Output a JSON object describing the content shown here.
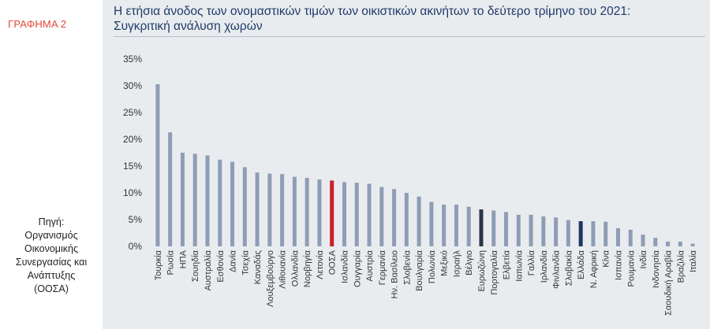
{
  "figure_label": "ΓΡΑΦΗΜΑ 2",
  "title_lines": [
    "Η ετήσια άνοδος των ονομαστικών τιμών των οικιστικών ακινήτων το δεύτερο τρίμηνο του 2021:",
    "Συγκριτική ανάλυση χωρών"
  ],
  "source_lines": [
    "Πηγή:",
    "Οργανισμός",
    "Οικονομικής",
    "Συνεργασίας και",
    "Ανάπτυξης",
    "(ΟΟΣΑ)"
  ],
  "colors": {
    "bar": "#8e9db5",
    "highlight_oecd": "#c8202a",
    "highlight_eurozone": "#2b3547",
    "highlight_greece": "#1f3566",
    "axis_text": "#333333",
    "panel_bg": "#e9ecef",
    "title": "#1f3a6a",
    "figure_label": "#e2473a"
  },
  "chart_data": {
    "type": "bar",
    "title": "Η ετήσια άνοδος των ονομαστικών τιμών των οικιστικών ακινήτων το δεύτερο τρίμηνο του 2021: Συγκριτική ανάλυση χωρών",
    "xlabel": "",
    "ylabel": "",
    "ylim": [
      0,
      35
    ],
    "yticks": [
      0,
      5,
      10,
      15,
      20,
      25,
      30,
      35
    ],
    "ytick_labels": [
      "0%",
      "5%",
      "10%",
      "15%",
      "20%",
      "25%",
      "30%",
      "35%"
    ],
    "grid": false,
    "categories": [
      "Τουρκία",
      "Ρωσία",
      "ΗΠΑ",
      "Σουηδία",
      "Αυστραλία",
      "Εσθονία",
      "Δανία",
      "Τσεχία",
      "Καναδάς",
      "Λουξεμβούργο",
      "Λιθουανία",
      "Ολλανδία",
      "Νορβηγία",
      "Λετονία",
      "ΟΟΣΑ",
      "Ισλανδία",
      "Ουγγαρία",
      "Αυστρία",
      "Γερμανία",
      "Ην. Βασίλειο",
      "Σλοβενία",
      "Βουλγαρία",
      "Πολωνία",
      "Μεξικό",
      "Ισραήλ",
      "Βέλγιο",
      "Ευρωζώνη",
      "Πορτογαλία",
      "Ελβετία",
      "Ιαπωνία",
      "Γαλλία",
      "Ιρλανδία",
      "Φινλανδία",
      "Σλοβακία",
      "Ελλάδα",
      "Ν. Αφρική",
      "Κίνα",
      "Ισπανία",
      "Ρουμανία",
      "Ινδία",
      "Ινδονησία",
      "Σαουδική Αραβία",
      "Βραζιλία",
      "Ιταλία"
    ],
    "values": [
      30.3,
      21.3,
      17.5,
      17.3,
      17.0,
      16.2,
      15.8,
      14.8,
      13.8,
      13.6,
      13.5,
      13.0,
      12.8,
      12.5,
      12.3,
      12.0,
      11.9,
      11.7,
      11.1,
      10.7,
      10.0,
      9.3,
      8.3,
      7.8,
      7.8,
      7.4,
      6.9,
      6.7,
      6.4,
      5.9,
      5.9,
      5.6,
      5.4,
      4.9,
      4.7,
      4.7,
      4.6,
      3.4,
      3.1,
      2.2,
      1.6,
      0.9,
      0.9,
      0.5
    ],
    "highlight": {
      "ΟΟΣΑ": "highlight_oecd",
      "Ευρωζώνη": "highlight_eurozone",
      "Ελλάδα": "highlight_greece"
    }
  }
}
